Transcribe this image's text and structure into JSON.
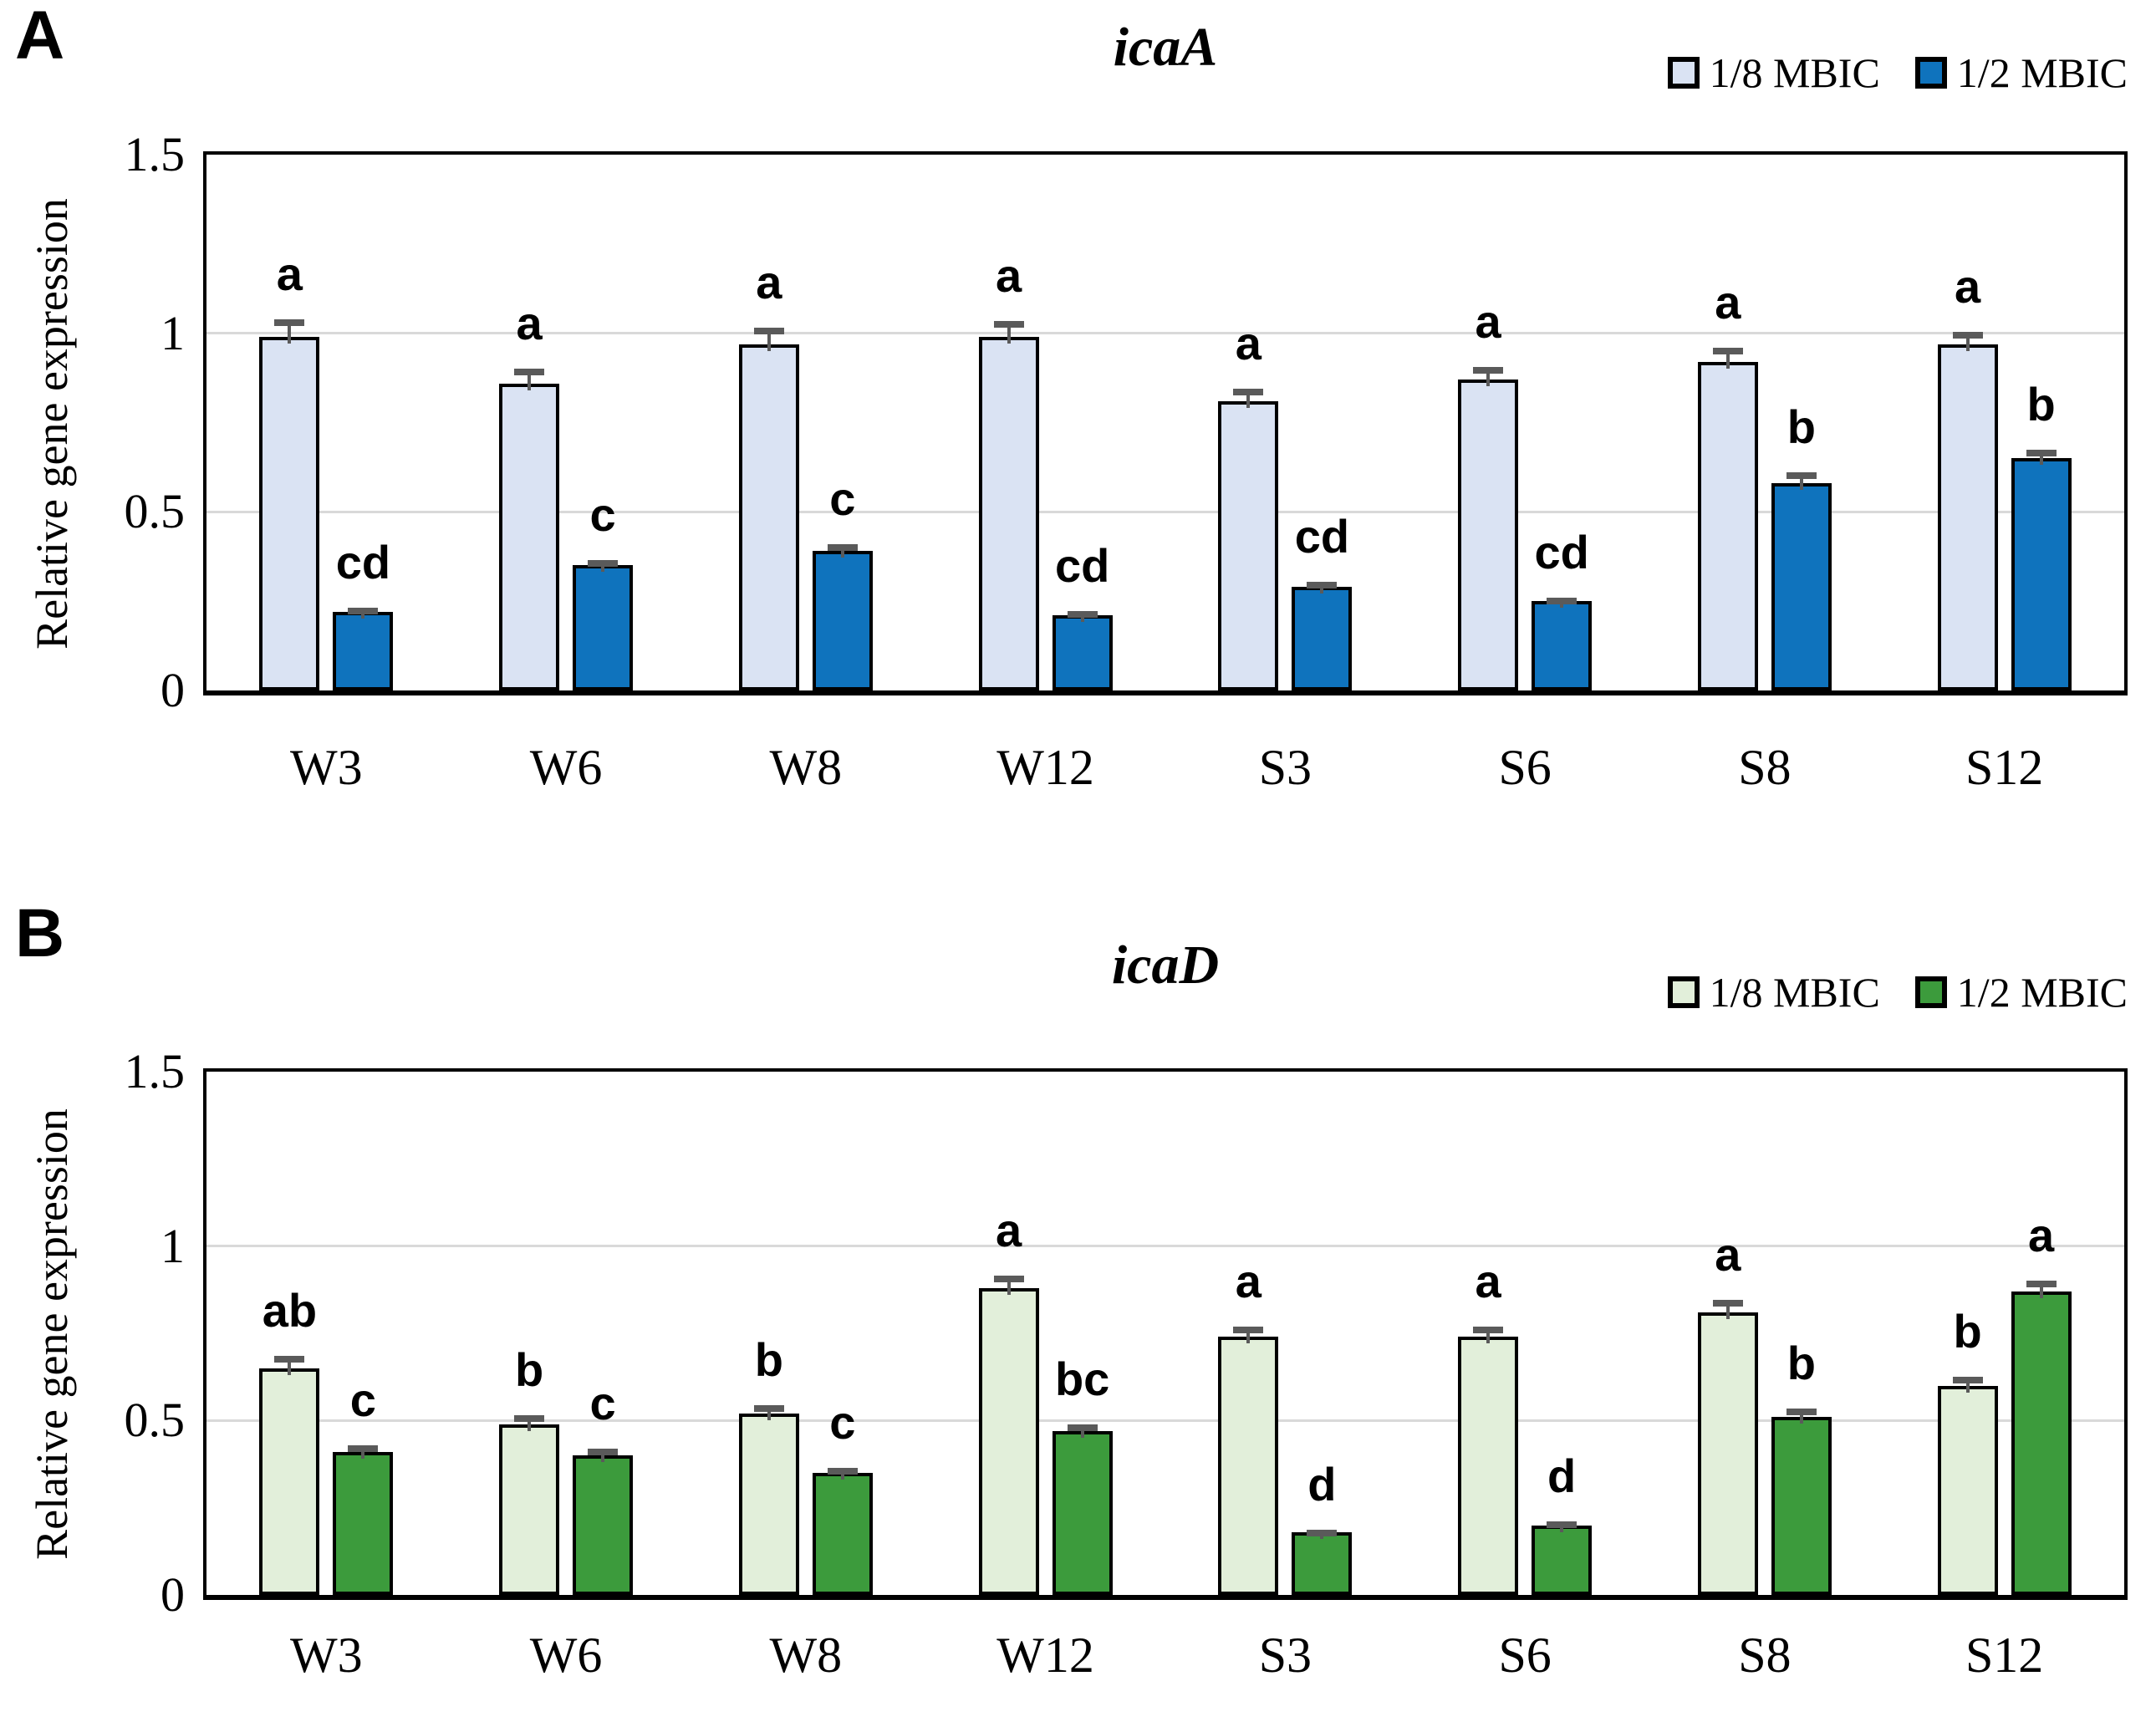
{
  "chart_data": [
    {
      "type": "bar",
      "panel_label": "A",
      "title": "icaA",
      "ylabel": "Relative gene expression",
      "ylim": [
        0,
        1.5
      ],
      "yticks": [
        {
          "label": "1.5",
          "value": 1.5
        },
        {
          "label": "1",
          "value": 1.0
        },
        {
          "label": "0.5",
          "value": 0.5
        },
        {
          "label": "0",
          "value": 0.0
        }
      ],
      "gridlines": [
        1.0,
        0.5
      ],
      "grid": "horizontal",
      "legend_position": "top-right",
      "legend": [
        {
          "label": "1/8 MBIC",
          "color": "#dae3f3"
        },
        {
          "label": "1/2 MBIC",
          "color": "#0f73bd"
        }
      ],
      "categories": [
        "W3",
        "W6",
        "W8",
        "W12",
        "S3",
        "S6",
        "S8",
        "S12"
      ],
      "series": [
        {
          "name": "1/8 MBIC",
          "color": "#dae3f3",
          "values": [
            0.99,
            0.86,
            0.97,
            0.99,
            0.81,
            0.87,
            0.92,
            0.97
          ],
          "errors": [
            0.05,
            0.04,
            0.045,
            0.045,
            0.035,
            0.035,
            0.04,
            0.035
          ],
          "letters": [
            "a",
            "a",
            "a",
            "a",
            "a",
            "a",
            "a",
            "a"
          ]
        },
        {
          "name": "1/2 MBIC",
          "color": "#0f73bd",
          "values": [
            0.22,
            0.35,
            0.39,
            0.21,
            0.29,
            0.25,
            0.58,
            0.65
          ],
          "errors": [
            0.012,
            0.015,
            0.02,
            0.012,
            0.015,
            0.01,
            0.03,
            0.025
          ],
          "letters": [
            "cd",
            "c",
            "c",
            "cd",
            "cd",
            "cd",
            "b",
            "b"
          ]
        }
      ]
    },
    {
      "type": "bar",
      "panel_label": "B",
      "title": "icaD",
      "ylabel": "Relative gene expression",
      "ylim": [
        0,
        1.5
      ],
      "yticks": [
        {
          "label": "1.5",
          "value": 1.5
        },
        {
          "label": "1",
          "value": 1.0
        },
        {
          "label": "0.5",
          "value": 0.5
        },
        {
          "label": "0",
          "value": 0.0
        }
      ],
      "gridlines": [
        1.0,
        0.5
      ],
      "grid": "horizontal",
      "legend_position": "top-right",
      "legend": [
        {
          "label": "1/8 MBIC",
          "color": "#e2efda"
        },
        {
          "label": "1/2 MBIC",
          "color": "#3c9b3c"
        }
      ],
      "categories": [
        "W3",
        "W6",
        "W8",
        "W12",
        "S3",
        "S6",
        "S8",
        "S12"
      ],
      "series": [
        {
          "name": "1/8 MBIC",
          "color": "#e2efda",
          "values": [
            0.65,
            0.49,
            0.52,
            0.88,
            0.74,
            0.74,
            0.81,
            0.6
          ],
          "errors": [
            0.035,
            0.025,
            0.025,
            0.035,
            0.03,
            0.03,
            0.035,
            0.025
          ],
          "letters": [
            "ab",
            "b",
            "b",
            "a",
            "a",
            "a",
            "a",
            "b"
          ]
        },
        {
          "name": "1/2 MBIC",
          "color": "#3c9b3c",
          "values": [
            0.41,
            0.4,
            0.35,
            0.47,
            0.18,
            0.2,
            0.51,
            0.87
          ],
          "errors": [
            0.02,
            0.02,
            0.015,
            0.02,
            0.008,
            0.012,
            0.025,
            0.03
          ],
          "letters": [
            "c",
            "c",
            "c",
            "bc",
            "d",
            "d",
            "b",
            "a"
          ]
        }
      ]
    }
  ],
  "colors": {
    "gridline": "#d9d9d9",
    "error_bar": "#5a5a5a",
    "frame": "#000000",
    "background": "#ffffff"
  }
}
